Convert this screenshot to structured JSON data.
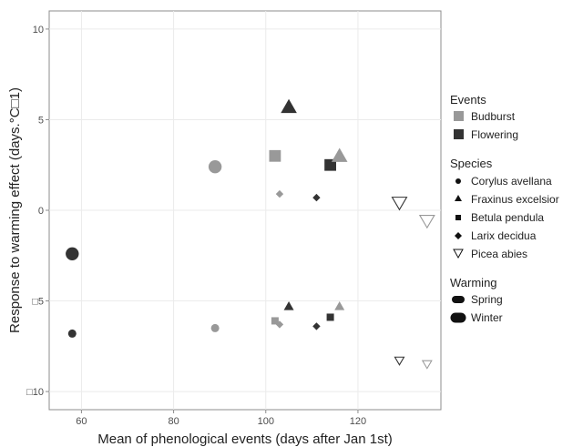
{
  "chart_data": {
    "type": "scatter",
    "xlabel": "Mean of phenological events (days after Jan 1st)",
    "ylabel": "Response to warming effect (days.°C□1)",
    "xlim": [
      53,
      138
    ],
    "ylim": [
      -11,
      11
    ],
    "x_ticks": [
      60,
      80,
      100,
      120
    ],
    "y_ticks": [
      10,
      5,
      0,
      -5,
      -10
    ],
    "x_tick_labels": [
      "60",
      "80",
      "100",
      "120"
    ],
    "y_tick_labels": [
      "10",
      "5",
      "0",
      "□5",
      "□10"
    ],
    "grid": true,
    "legend_position": "right",
    "colors": {
      "Budburst": "#999999",
      "Flowering": "#333333"
    },
    "legend": {
      "events": {
        "title": "Events",
        "items": [
          "Budburst",
          "Flowering"
        ]
      },
      "species": {
        "title": "Species",
        "items": [
          "Corylus avellana",
          "Fraxinus excelsior",
          "Betula pendula",
          "Larix decidua",
          "Picea abies"
        ]
      },
      "warming": {
        "title": "Warming",
        "items": [
          "Spring",
          "Winter"
        ]
      }
    },
    "points": [
      {
        "x": 58,
        "y": -2.4,
        "species": "Corylus avellana",
        "event": "Flowering",
        "warming": "Winter"
      },
      {
        "x": 58,
        "y": -6.8,
        "species": "Corylus avellana",
        "event": "Flowering",
        "warming": "Spring"
      },
      {
        "x": 89,
        "y": 2.4,
        "species": "Corylus avellana",
        "event": "Budburst",
        "warming": "Winter"
      },
      {
        "x": 89,
        "y": -6.5,
        "species": "Corylus avellana",
        "event": "Budburst",
        "warming": "Spring"
      },
      {
        "x": 102,
        "y": 3.0,
        "species": "Betula pendula",
        "event": "Budburst",
        "warming": "Winter"
      },
      {
        "x": 102,
        "y": -6.1,
        "species": "Betula pendula",
        "event": "Budburst",
        "warming": "Spring"
      },
      {
        "x": 103,
        "y": 0.9,
        "species": "Larix decidua",
        "event": "Budburst",
        "warming": "Spring"
      },
      {
        "x": 103,
        "y": -6.3,
        "species": "Larix decidua",
        "event": "Budburst",
        "warming": "Spring"
      },
      {
        "x": 105,
        "y": 5.7,
        "species": "Fraxinus excelsior",
        "event": "Flowering",
        "warming": "Winter"
      },
      {
        "x": 105,
        "y": -5.3,
        "species": "Fraxinus excelsior",
        "event": "Flowering",
        "warming": "Spring"
      },
      {
        "x": 111,
        "y": 0.7,
        "species": "Larix decidua",
        "event": "Flowering",
        "warming": "Spring"
      },
      {
        "x": 111,
        "y": -6.4,
        "species": "Larix decidua",
        "event": "Flowering",
        "warming": "Spring"
      },
      {
        "x": 114,
        "y": 2.5,
        "species": "Betula pendula",
        "event": "Flowering",
        "warming": "Winter"
      },
      {
        "x": 114,
        "y": -5.9,
        "species": "Betula pendula",
        "event": "Flowering",
        "warming": "Spring"
      },
      {
        "x": 116,
        "y": 3.0,
        "species": "Fraxinus excelsior",
        "event": "Budburst",
        "warming": "Winter"
      },
      {
        "x": 116,
        "y": -5.3,
        "species": "Fraxinus excelsior",
        "event": "Budburst",
        "warming": "Spring"
      },
      {
        "x": 129,
        "y": 0.4,
        "species": "Picea abies",
        "event": "Flowering",
        "warming": "Winter"
      },
      {
        "x": 129,
        "y": -8.3,
        "species": "Picea abies",
        "event": "Flowering",
        "warming": "Spring"
      },
      {
        "x": 135,
        "y": -0.6,
        "species": "Picea abies",
        "event": "Budburst",
        "warming": "Winter"
      },
      {
        "x": 135,
        "y": -8.5,
        "species": "Picea abies",
        "event": "Budburst",
        "warming": "Spring"
      }
    ]
  }
}
